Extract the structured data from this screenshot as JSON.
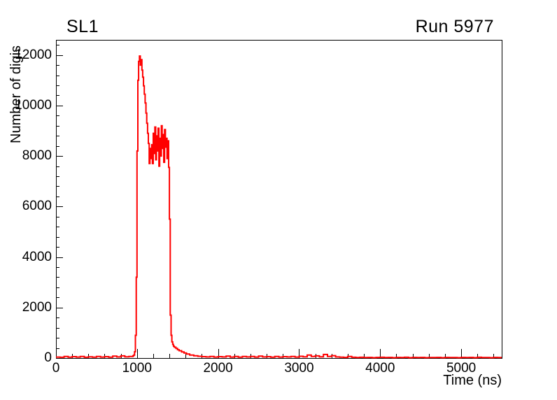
{
  "canvas": {
    "background": "#ffffff",
    "frame_color": "#000000"
  },
  "chart_data": {
    "type": "line",
    "style": "histogram-step",
    "title": "SL1",
    "right_title": "Run 5977",
    "xlabel": "Time (ns)",
    "ylabel": "Number of digis",
    "xlim": [
      0,
      5500
    ],
    "ylim": [
      0,
      12600
    ],
    "x_major_ticks": [
      0,
      1000,
      2000,
      3000,
      4000,
      5000
    ],
    "x_minor_step": 200,
    "y_major_ticks": [
      0,
      2000,
      4000,
      6000,
      8000,
      10000,
      12000
    ],
    "y_minor_step": 400,
    "grid": false,
    "legend_position": "none",
    "line_color": "#ff0000",
    "axis_color": "#000000",
    "points": [
      [
        0,
        40
      ],
      [
        50,
        30
      ],
      [
        100,
        65
      ],
      [
        150,
        35
      ],
      [
        200,
        55
      ],
      [
        250,
        40
      ],
      [
        300,
        60
      ],
      [
        350,
        30
      ],
      [
        400,
        50
      ],
      [
        450,
        35
      ],
      [
        500,
        60
      ],
      [
        550,
        40
      ],
      [
        600,
        55
      ],
      [
        650,
        35
      ],
      [
        700,
        75
      ],
      [
        750,
        45
      ],
      [
        800,
        85
      ],
      [
        850,
        50
      ],
      [
        900,
        65
      ],
      [
        950,
        90
      ],
      [
        960,
        120
      ],
      [
        970,
        250
      ],
      [
        980,
        900
      ],
      [
        990,
        3200
      ],
      [
        1000,
        8200
      ],
      [
        1010,
        11000
      ],
      [
        1020,
        11750
      ],
      [
        1030,
        11960
      ],
      [
        1040,
        11600
      ],
      [
        1050,
        11820
      ],
      [
        1060,
        11400
      ],
      [
        1070,
        11120
      ],
      [
        1080,
        10780
      ],
      [
        1090,
        10450
      ],
      [
        1100,
        10100
      ],
      [
        1110,
        9700
      ],
      [
        1120,
        9300
      ],
      [
        1130,
        8900
      ],
      [
        1140,
        8500
      ],
      [
        1150,
        7700
      ],
      [
        1160,
        8300
      ],
      [
        1170,
        7900
      ],
      [
        1180,
        8450
      ],
      [
        1190,
        7700
      ],
      [
        1200,
        8900
      ],
      [
        1210,
        8100
      ],
      [
        1220,
        9150
      ],
      [
        1230,
        7850
      ],
      [
        1240,
        8800
      ],
      [
        1250,
        8200
      ],
      [
        1260,
        9100
      ],
      [
        1270,
        7600
      ],
      [
        1280,
        8700
      ],
      [
        1290,
        8000
      ],
      [
        1300,
        9200
      ],
      [
        1310,
        8300
      ],
      [
        1320,
        8850
      ],
      [
        1330,
        7750
      ],
      [
        1340,
        9050
      ],
      [
        1350,
        8350
      ],
      [
        1360,
        8700
      ],
      [
        1370,
        7900
      ],
      [
        1380,
        8600
      ],
      [
        1390,
        7550
      ],
      [
        1400,
        5500
      ],
      [
        1410,
        1700
      ],
      [
        1420,
        900
      ],
      [
        1430,
        640
      ],
      [
        1440,
        540
      ],
      [
        1450,
        470
      ],
      [
        1460,
        430
      ],
      [
        1480,
        380
      ],
      [
        1500,
        330
      ],
      [
        1520,
        290
      ],
      [
        1550,
        240
      ],
      [
        1580,
        200
      ],
      [
        1610,
        160
      ],
      [
        1650,
        120
      ],
      [
        1700,
        90
      ],
      [
        1750,
        70
      ],
      [
        1800,
        55
      ],
      [
        1850,
        45
      ],
      [
        1900,
        60
      ],
      [
        1950,
        40
      ],
      [
        2000,
        55
      ],
      [
        2050,
        45
      ],
      [
        2100,
        75
      ],
      [
        2150,
        40
      ],
      [
        2200,
        60
      ],
      [
        2250,
        35
      ],
      [
        2300,
        65
      ],
      [
        2350,
        45
      ],
      [
        2400,
        60
      ],
      [
        2450,
        40
      ],
      [
        2500,
        75
      ],
      [
        2550,
        45
      ],
      [
        2600,
        55
      ],
      [
        2650,
        35
      ],
      [
        2700,
        65
      ],
      [
        2750,
        40
      ],
      [
        2800,
        55
      ],
      [
        2850,
        45
      ],
      [
        2900,
        60
      ],
      [
        2950,
        40
      ],
      [
        3000,
        70
      ],
      [
        3050,
        50
      ],
      [
        3100,
        120
      ],
      [
        3150,
        60
      ],
      [
        3200,
        85
      ],
      [
        3250,
        50
      ],
      [
        3300,
        140
      ],
      [
        3350,
        60
      ],
      [
        3400,
        95
      ],
      [
        3450,
        45
      ],
      [
        3500,
        35
      ],
      [
        3550,
        25
      ],
      [
        3600,
        60
      ],
      [
        3650,
        30
      ],
      [
        3700,
        20
      ],
      [
        3750,
        30
      ],
      [
        3800,
        20
      ],
      [
        3850,
        25
      ],
      [
        3900,
        15
      ],
      [
        3950,
        25
      ],
      [
        4000,
        30
      ],
      [
        4050,
        20
      ],
      [
        4100,
        25
      ],
      [
        4150,
        15
      ],
      [
        4200,
        25
      ],
      [
        4250,
        20
      ],
      [
        4300,
        30
      ],
      [
        4350,
        15
      ],
      [
        4400,
        25
      ],
      [
        4450,
        20
      ],
      [
        4500,
        25
      ],
      [
        4550,
        15
      ],
      [
        4600,
        20
      ],
      [
        4650,
        20
      ],
      [
        4700,
        25
      ],
      [
        4750,
        15
      ],
      [
        4800,
        25
      ],
      [
        4850,
        20
      ],
      [
        4900,
        20
      ],
      [
        4950,
        15
      ],
      [
        5000,
        25
      ],
      [
        5050,
        20
      ],
      [
        5100,
        25
      ],
      [
        5150,
        15
      ],
      [
        5200,
        30
      ],
      [
        5250,
        20
      ],
      [
        5300,
        20
      ],
      [
        5350,
        15
      ],
      [
        5400,
        25
      ],
      [
        5450,
        20
      ],
      [
        5500,
        20
      ]
    ]
  }
}
